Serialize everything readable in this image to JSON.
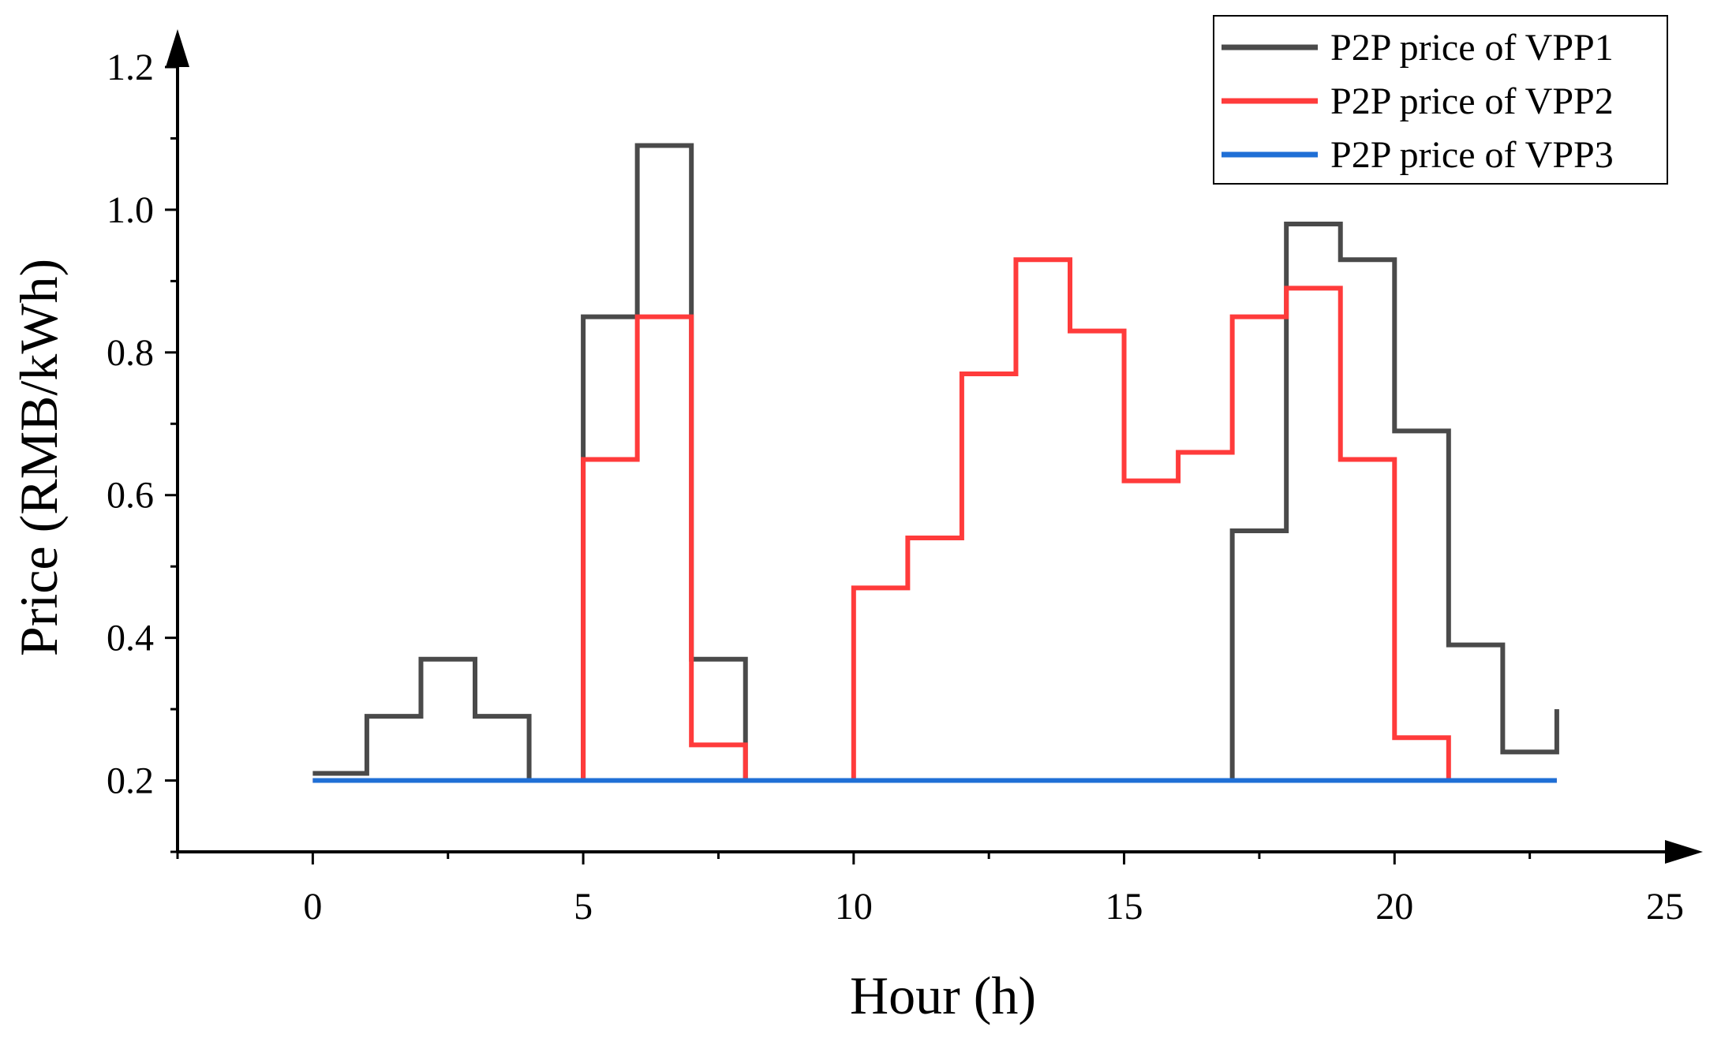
{
  "chart_data": {
    "type": "line",
    "step": "post",
    "xlabel": "Hour (h)",
    "ylabel": "Price (RMB/kWh)",
    "xlim": [
      -2.5,
      25
    ],
    "ylim": [
      0.1,
      1.2
    ],
    "x_ticks": [
      0,
      5,
      10,
      15,
      20,
      25
    ],
    "y_ticks": [
      0.2,
      0.4,
      0.6,
      0.8,
      1.0,
      1.2
    ],
    "y_tick_labels": [
      "0.2",
      "0.4",
      "0.6",
      "0.8",
      "1.0",
      "1.2"
    ],
    "legend_position": "top-right",
    "x": [
      0,
      1,
      2,
      3,
      4,
      5,
      6,
      7,
      8,
      9,
      10,
      11,
      12,
      13,
      14,
      15,
      16,
      17,
      18,
      19,
      20,
      21,
      22,
      23
    ],
    "series": [
      {
        "name": "P2P price of VPP1",
        "color": "#4a4a4a",
        "values": [
          0.21,
          0.29,
          0.37,
          0.29,
          0.2,
          0.85,
          1.09,
          0.37,
          0.2,
          0.2,
          0.2,
          0.2,
          0.2,
          0.2,
          0.2,
          0.2,
          0.2,
          0.55,
          0.98,
          0.93,
          0.69,
          0.39,
          0.24,
          0.3
        ]
      },
      {
        "name": "P2P price of VPP2",
        "color": "#ff3b3b",
        "values": [
          0.2,
          0.2,
          0.2,
          0.2,
          0.2,
          0.65,
          0.85,
          0.25,
          0.2,
          0.2,
          0.47,
          0.54,
          0.77,
          0.93,
          0.83,
          0.62,
          0.66,
          0.85,
          0.89,
          0.65,
          0.26,
          0.2,
          0.2,
          0.2
        ]
      },
      {
        "name": "P2P price of VPP3",
        "color": "#1f6fd6",
        "values": [
          0.2,
          0.2,
          0.2,
          0.2,
          0.2,
          0.2,
          0.2,
          0.2,
          0.2,
          0.2,
          0.2,
          0.2,
          0.2,
          0.2,
          0.2,
          0.2,
          0.2,
          0.2,
          0.2,
          0.2,
          0.2,
          0.2,
          0.2,
          0.2
        ]
      }
    ]
  }
}
